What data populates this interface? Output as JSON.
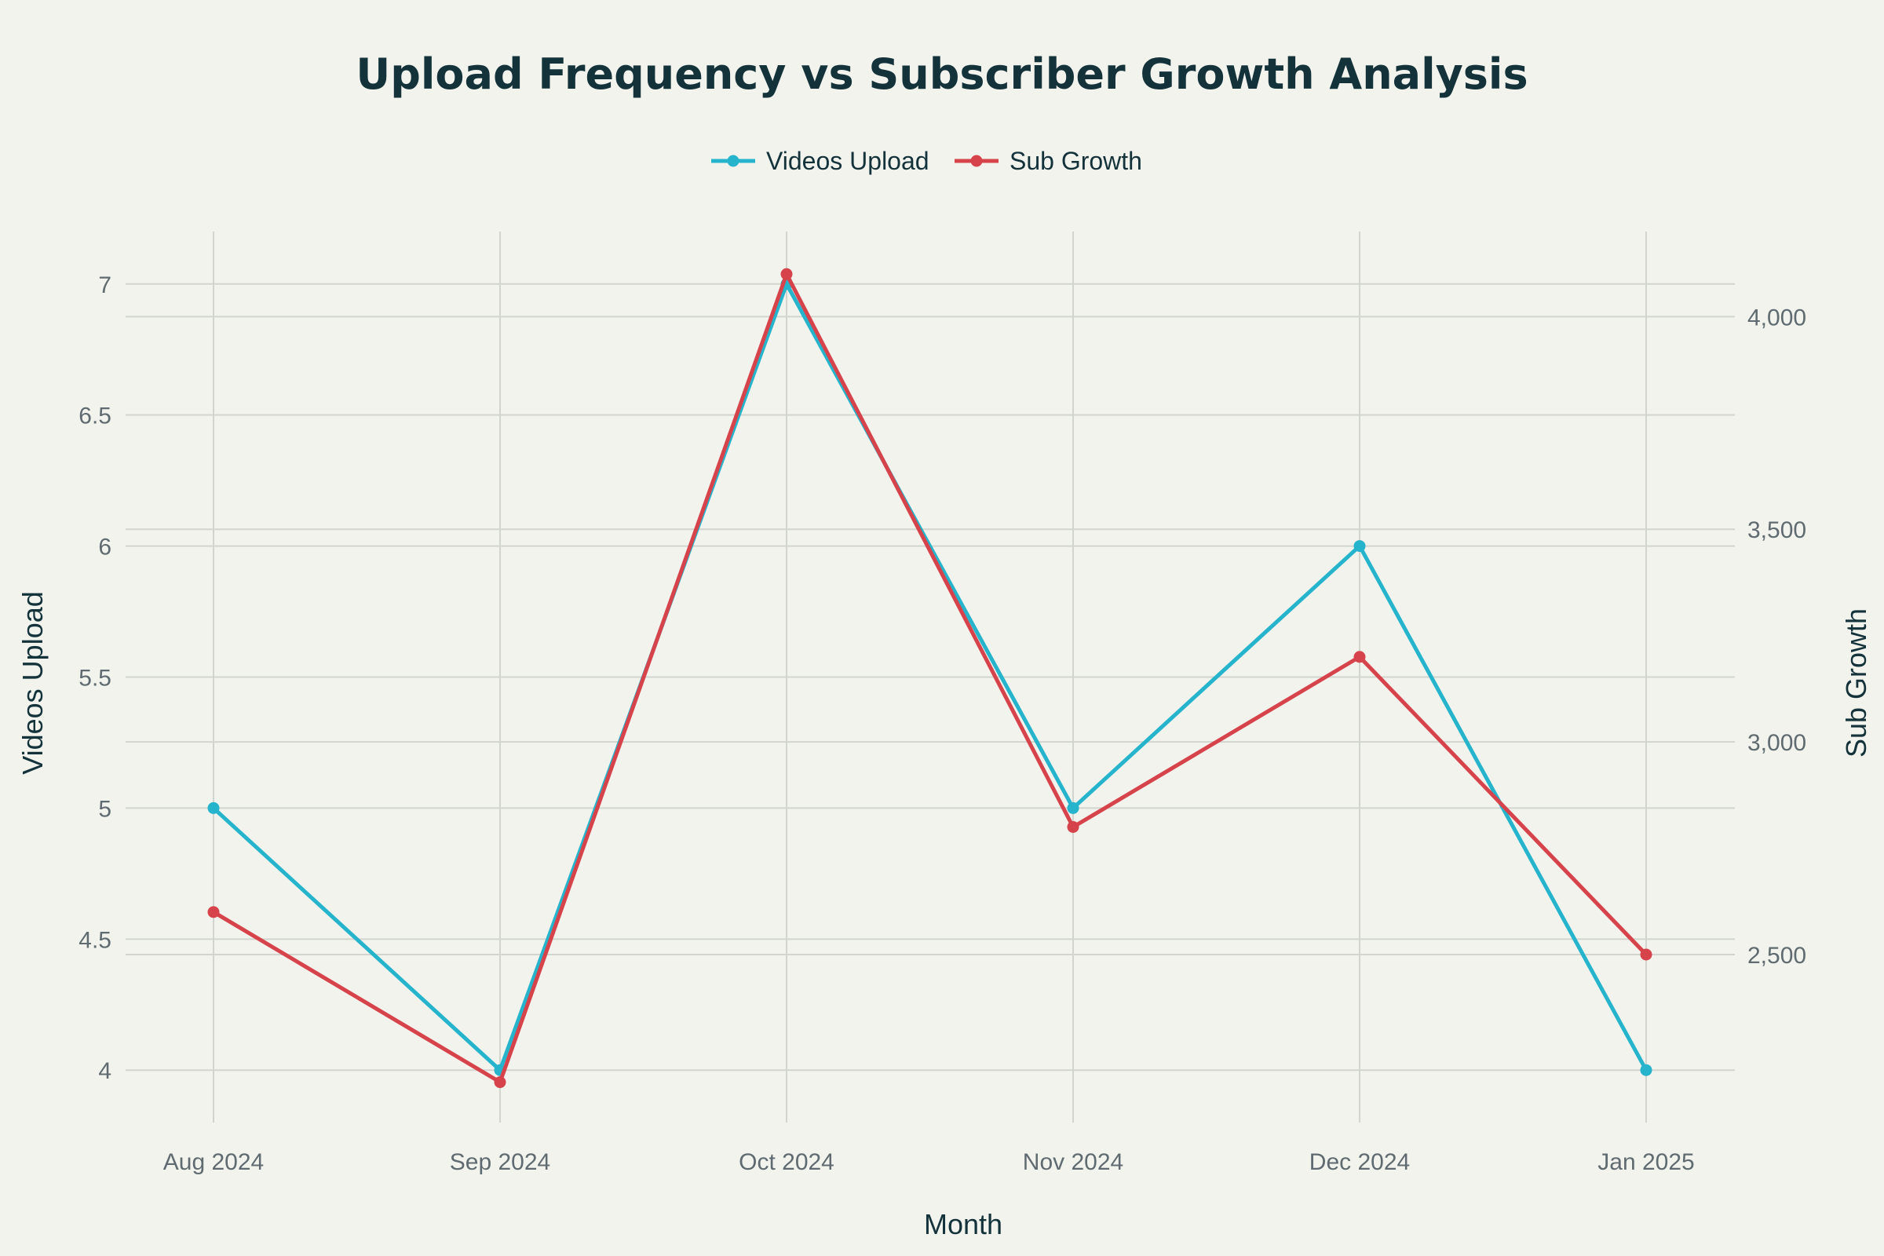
{
  "chart_data": {
    "type": "line",
    "title": "Upload Frequency vs Subscriber Growth Analysis",
    "xlabel": "Month",
    "ylabel_left": "Videos Upload",
    "ylabel_right": "Sub Growth",
    "categories": [
      "Aug 2024",
      "Sep 2024",
      "Oct 2024",
      "Nov 2024",
      "Dec 2024",
      "Jan 2025"
    ],
    "series": [
      {
        "name": "Videos Upload",
        "axis": "left",
        "color": "#25b4cc",
        "values": [
          5,
          4,
          7,
          5,
          6,
          4
        ]
      },
      {
        "name": "Sub Growth",
        "axis": "right",
        "color": "#d6434a",
        "values": [
          2600,
          2200,
          4100,
          2800,
          3200,
          2500
        ]
      }
    ],
    "ylim_left": [
      3.8,
      7.2
    ],
    "ylim_right": [
      2105,
      4200
    ],
    "yticks_left": [
      4,
      4.5,
      5,
      5.5,
      6,
      6.5,
      7
    ],
    "yticks_left_labels": [
      "4",
      "4.5",
      "5",
      "5.5",
      "6",
      "6.5",
      "7"
    ],
    "yticks_right": [
      2500,
      3000,
      3500,
      4000
    ],
    "yticks_right_labels": [
      "2,500",
      "3,000",
      "3,500",
      "4,000"
    ],
    "grid": true,
    "legend_position": "top-center"
  }
}
